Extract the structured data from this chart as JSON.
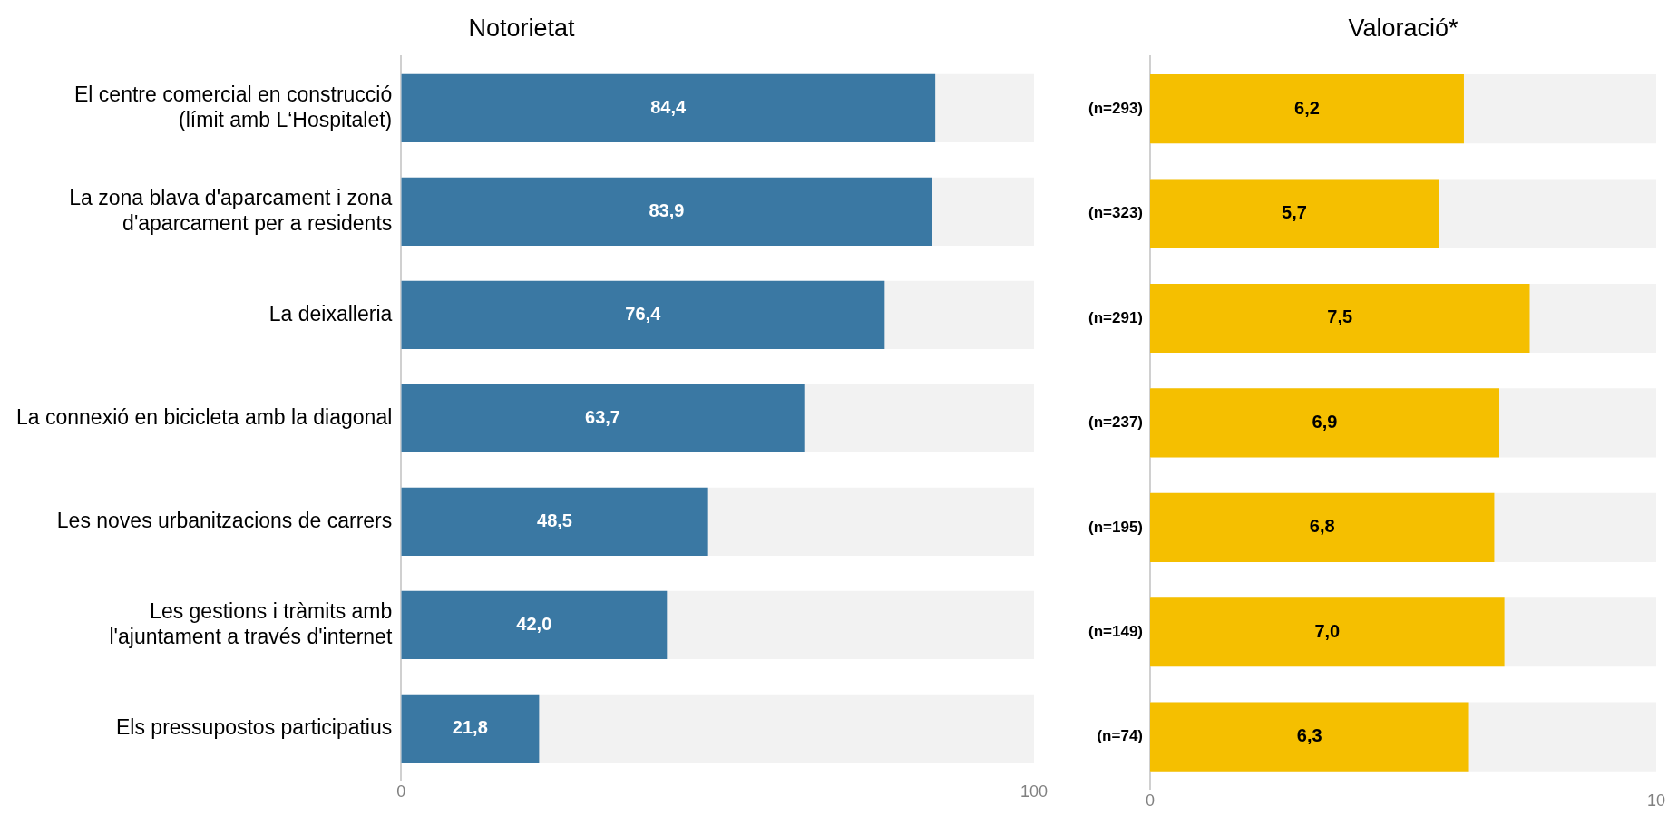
{
  "chart_data": [
    {
      "type": "bar",
      "orientation": "horizontal",
      "title": "Notorietat",
      "categories": [
        "El centre comercial en construcció\n(límit amb L‘Hospitalet)",
        "La zona blava d'aparcament i zona\nd'aparcament per a residents",
        "La deixalleria",
        "La connexió en bicicleta amb la diagonal",
        "Les noves urbanitzacions de carrers",
        "Les gestions i tràmits amb\nl'ajuntament a través d'internet",
        "Els pressupostos participatius"
      ],
      "values": [
        84.4,
        83.9,
        76.4,
        63.7,
        48.5,
        42.0,
        21.8
      ],
      "value_labels": [
        "84,4",
        "83,9",
        "76,4",
        "63,7",
        "48,5",
        "42,0",
        "21,8"
      ],
      "color": "#3a78a3",
      "xlim": [
        0,
        100
      ],
      "xticks": [
        0,
        100
      ]
    },
    {
      "type": "bar",
      "orientation": "horizontal",
      "title": "Valoració*",
      "tick_labels": "x",
      "values": [
        6.2,
        5.7,
        7.5,
        6.9,
        6.8,
        7.0,
        6.3
      ],
      "value_labels": [
        "6,2",
        "5,7",
        "7,5",
        "6,9",
        "6,8",
        "7,0",
        "6,3"
      ],
      "color": "#f5bf00",
      "xlim": [
        0,
        10
      ],
      "xticks": [
        0,
        10
      ],
      "annotations": [
        "(n=293)",
        "(n=323)",
        "(n=291)",
        "(n=237)",
        "(n=195)",
        "(n=149)",
        "(n=74)"
      ]
    }
  ]
}
